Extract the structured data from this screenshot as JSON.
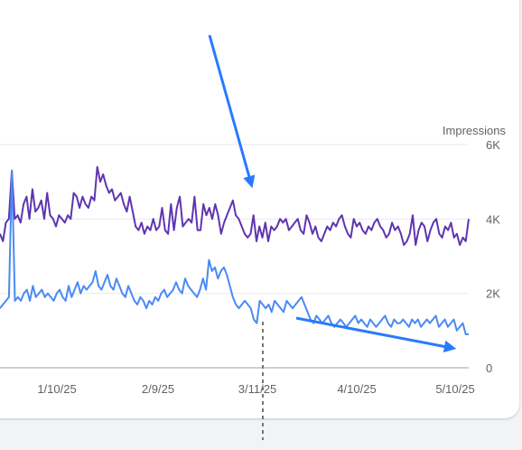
{
  "chart_data": {
    "type": "line",
    "y_axis_title": "Impressions",
    "y_ticks": [
      "0",
      "2K",
      "4K",
      "6K"
    ],
    "ylim": [
      0,
      6000
    ],
    "x_ticks": [
      "1/10/25",
      "2/9/25",
      "3/11/25",
      "4/10/25",
      "5/10/25"
    ],
    "grid": true,
    "series": [
      {
        "color": "#5e35b1",
        "values": [
          3600,
          3400,
          3900,
          4000,
          5300,
          4000,
          4100,
          3900,
          4400,
          4600,
          4000,
          4800,
          4200,
          4300,
          4500,
          4000,
          4700,
          4100,
          4000,
          3800,
          4100,
          4000,
          3900,
          4100,
          4000,
          4700,
          4600,
          4300,
          4600,
          4400,
          4300,
          4600,
          4500,
          5400,
          5000,
          5200,
          4900,
          4700,
          4800,
          4500,
          4600,
          4700,
          4400,
          4200,
          4600,
          4200,
          3800,
          3700,
          3900,
          3600,
          3800,
          3700,
          4000,
          3700,
          3800,
          4300,
          3700,
          3600,
          4400,
          3700,
          4300,
          4600,
          3800,
          3900,
          4000,
          3900,
          4600,
          3700,
          3700,
          4400,
          4100,
          4300,
          4000,
          4400,
          4100,
          3600,
          3900,
          4100,
          4300,
          4500,
          4100,
          4000,
          3800,
          3600,
          3500,
          3600,
          4100,
          3400,
          3800,
          3500,
          3900,
          3400,
          3800,
          3700,
          3800,
          4000,
          3900,
          4000,
          3700,
          3800,
          3900,
          4000,
          3700,
          3600,
          4100,
          3900,
          3600,
          3800,
          3500,
          3400,
          3600,
          3800,
          3700,
          3900,
          3800,
          4000,
          4100,
          3800,
          3600,
          3500,
          4000,
          3800,
          3900,
          3700,
          3600,
          3800,
          3700,
          3900,
          4000,
          3800,
          3700,
          3500,
          3600,
          3900,
          3700,
          3800,
          3600,
          3300,
          3400,
          3600,
          4100,
          3300,
          3700,
          3900,
          3800,
          3400,
          3700,
          3900,
          4000,
          3600,
          3500,
          3800,
          3700,
          3900,
          3500,
          3600,
          3300,
          3500,
          3400,
          4000
        ]
      },
      {
        "color": "#4a8af4",
        "values": [
          1600,
          1700,
          1800,
          1900,
          5300,
          1800,
          1900,
          1800,
          2000,
          2100,
          1800,
          2200,
          1900,
          2000,
          2100,
          1900,
          2000,
          1900,
          1800,
          2000,
          2100,
          1900,
          1800,
          2200,
          1900,
          2100,
          2300,
          2000,
          2200,
          2100,
          2200,
          2300,
          2600,
          2200,
          2100,
          2300,
          2500,
          2200,
          2100,
          2400,
          2200,
          2000,
          1900,
          2200,
          2000,
          1800,
          1700,
          1900,
          1800,
          1600,
          1800,
          1700,
          1900,
          1800,
          2000,
          2100,
          1900,
          2000,
          2100,
          2300,
          2100,
          2000,
          2400,
          2200,
          2100,
          2000,
          1900,
          2100,
          2400,
          2100,
          2900,
          2600,
          2700,
          2400,
          2600,
          2700,
          2500,
          2200,
          1900,
          1700,
          1600,
          1700,
          1800,
          1700,
          1600,
          1300,
          1200,
          1800,
          1700,
          1600,
          1700,
          1500,
          1800,
          1700,
          1600,
          1500,
          1800,
          1700,
          1600,
          1700,
          1800,
          1900,
          1700,
          1500,
          1300,
          1200,
          1400,
          1300,
          1200,
          1300,
          1400,
          1200,
          1100,
          1200,
          1300,
          1200,
          1100,
          1200,
          1300,
          1400,
          1200,
          1300,
          1200,
          1100,
          1300,
          1200,
          1100,
          1200,
          1300,
          1400,
          1200,
          1100,
          1300,
          1200,
          1200,
          1300,
          1200,
          1100,
          1300,
          1200,
          1300,
          1100,
          1200,
          1300,
          1200,
          1300,
          1400,
          1100,
          1200,
          1300,
          1100,
          1200,
          1300,
          1000,
          1100,
          1200,
          900,
          900
        ]
      }
    ],
    "annotations": [
      {
        "type": "arrow",
        "description": "down arrow pointing at purple spike near 3/11/25"
      },
      {
        "type": "arrow",
        "description": "arrow along declining blue line after 3/11/25"
      },
      {
        "type": "vline-dashed",
        "at": "3/11/25"
      }
    ]
  }
}
